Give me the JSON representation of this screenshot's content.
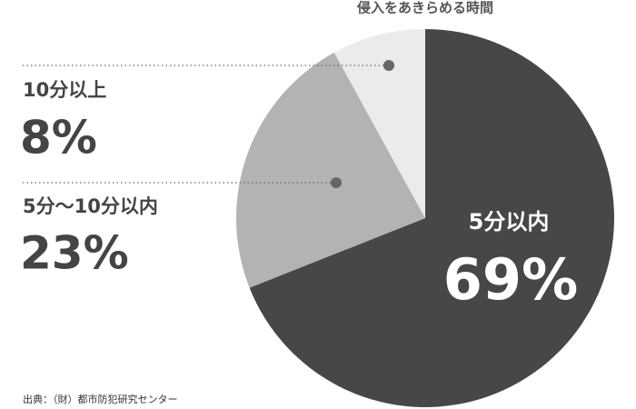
{
  "chart_data": {
    "type": "pie",
    "title": "侵入をあきらめる時間",
    "categories": [
      "5分以内",
      "5分～10分以内",
      "10分以上"
    ],
    "values": [
      69,
      23,
      8
    ],
    "value_labels": [
      "69%",
      "23%",
      "8%"
    ],
    "colors": [
      "#474747",
      "#b3b3b3",
      "#ebebeb"
    ],
    "source": "出典：（財）都市防犯研究センター"
  }
}
